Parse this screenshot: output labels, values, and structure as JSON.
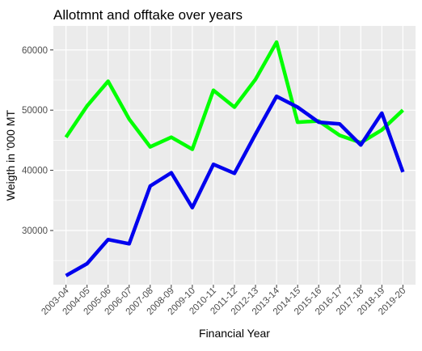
{
  "chart_data": {
    "type": "line",
    "title": "Allotmnt and offtake over years",
    "xlabel": "Financial Year",
    "ylabel": "Weigth in '000 MT",
    "categories": [
      "2003-04",
      "2004-05",
      "2005-06",
      "2006-07",
      "2007-08",
      "2008-09",
      "2009-10",
      "2010-11",
      "2011-12",
      "2012-13",
      "2013-14",
      "2014-15",
      "2015-16",
      "2016-17",
      "2017-18",
      "2018-19",
      "2019-20"
    ],
    "yticks": [
      "30000",
      "40000",
      "50000",
      "60000"
    ],
    "ylim": [
      21000,
      64000
    ],
    "grid": true,
    "background": "#ebebeb",
    "series": [
      {
        "color": "#00ff00",
        "values": [
          45500,
          50700,
          54800,
          48500,
          43900,
          45500,
          43500,
          53300,
          50500,
          55100,
          61300,
          48000,
          48200,
          45800,
          44600,
          46700,
          50000
        ]
      },
      {
        "color": "#0000ee",
        "values": [
          22500,
          24500,
          28500,
          27800,
          37400,
          39600,
          33800,
          41000,
          39500,
          46000,
          52300,
          50500,
          48000,
          47700,
          44200,
          49500,
          39700
        ]
      }
    ]
  }
}
